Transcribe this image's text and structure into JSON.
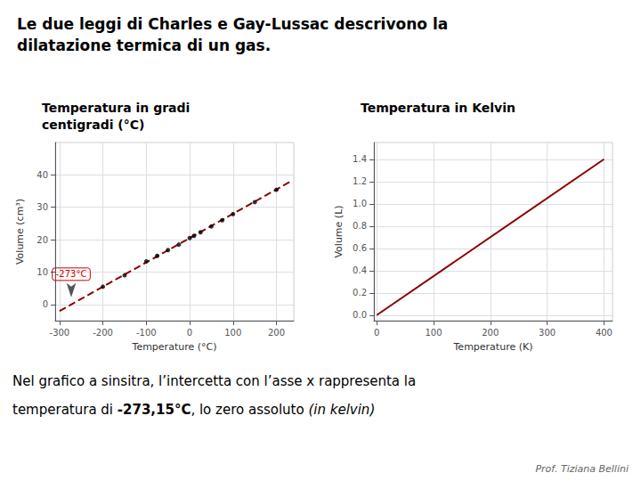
{
  "title": "Le due leggi di Charles e Gay-Lussac descrivono la\ndilatazione termica di un gas.",
  "annotations": [
    {
      "text": "Nel grafico a sinsitra, l’intercetta con l’asse x rappresenta la"
    },
    {
      "parts": [
        {
          "text": "temperatura di "
        },
        {
          "text": "-273,15°C",
          "style": "bold"
        },
        {
          "text": ", lo zero assoluto "
        },
        {
          "text": "(in kelvin)",
          "style": "italic"
        }
      ]
    },
    {
      "text": "Prof. Tiziana Bellini",
      "style": "italic"
    }
  ],
  "chart_data": [
    {
      "type": "scatter",
      "title": "Temperatura in gradi\ncentigradi (°C)",
      "xlabel": "Temperature (°C)",
      "ylabel": "Volume (cm³)",
      "xlim": [
        -310,
        240
      ],
      "ylim": [
        -5,
        50
      ],
      "xticks": [
        -300,
        -200,
        -100,
        0,
        100,
        200
      ],
      "yticks": [
        0,
        10,
        20,
        30,
        40
      ],
      "grid": true,
      "series": [
        {
          "type": "line",
          "line_style": "dashed",
          "color": "#8B0000",
          "x": [
            -300,
            230
          ],
          "values": [
            -2.0274725274725274,
            37.77106227106227
          ]
        },
        {
          "type": "scatter",
          "marker": "circle",
          "color": "#000000",
          "x": [
            -200,
            -150,
            -100,
            -75,
            -50,
            -25,
            0,
            10,
            25,
            50,
            75,
            100,
            150,
            200
          ],
          "values": [
            5.5,
            9.0,
            13.3,
            15.0,
            16.8,
            18.5,
            20.5,
            21.2,
            22.3,
            24.1,
            26.0,
            27.9,
            31.6,
            35.4
          ]
        }
      ],
      "annotations": [
        {
          "text": "-273°C",
          "x": -273,
          "y": 0,
          "color": "#cc0000"
        }
      ]
    },
    {
      "type": "line",
      "title": "Temperatura in Kelvin",
      "xlabel": "Temperature (K)",
      "ylabel": "Volume (L)",
      "xlim": [
        -5,
        415
      ],
      "ylim": [
        -0.05,
        1.55
      ],
      "xticks": [
        0,
        100,
        200,
        300,
        400
      ],
      "yticks": [
        {
          "value": 0.0,
          "label": "0.0"
        },
        0.2,
        0.4,
        0.6,
        0.8,
        {
          "value": 1.0,
          "label": "1.0"
        },
        1.2,
        1.4
      ],
      "grid": true,
      "series": [
        {
          "type": "line",
          "line_style": "solid",
          "color": "#8B0000",
          "x": [
            0,
            400
          ],
          "values": [
            0.0,
            1.4
          ]
        }
      ]
    }
  ]
}
